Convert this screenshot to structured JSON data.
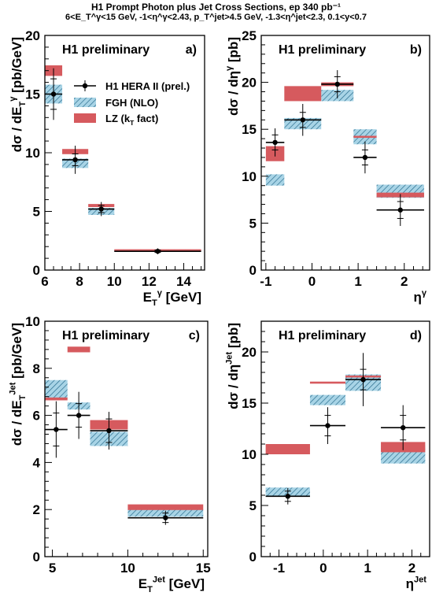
{
  "header": {
    "title": "H1 Prompt Photon plus Jet Cross Sections, ep 340 pb⁻¹",
    "subtitle": "6<E_T^γ<15 GeV, -1<η^γ<2.43, p_T^jet>4.5 GeV, -1.3<η^jet<2.3, 0.1<y<0.7"
  },
  "colors": {
    "data": "#000000",
    "nlo_fill": "#a8d4e6",
    "nlo_hatch": "#2a6d8e",
    "lz": "#d65a5e"
  },
  "legend": {
    "entries": [
      {
        "label": "H1 HERA II (prel.)",
        "style": "data-point"
      },
      {
        "label": "FGH (NLO)",
        "style": "hatched-box"
      },
      {
        "label": "LZ (k_T fact)",
        "style": "red-box"
      }
    ]
  },
  "chart_data": [
    {
      "panel": "a)",
      "type": "scatter",
      "preliminary_label": "H1 preliminary",
      "xlabel": "E_T^γ [GeV]",
      "ylabel": "dσ / dE_T^γ [pb/GeV]",
      "xlim": [
        6,
        15.2
      ],
      "ylim": [
        0,
        20
      ],
      "xticks": [
        6,
        8,
        10,
        12,
        14
      ],
      "yticks": [
        0,
        5,
        10,
        15,
        20
      ],
      "bins": [
        [
          6,
          7
        ],
        [
          7,
          8.5
        ],
        [
          8.5,
          10
        ],
        [
          10,
          15
        ]
      ],
      "data": {
        "y": [
          15.0,
          9.4,
          5.2,
          1.6
        ],
        "stat_err": [
          1.3,
          0.5,
          0.3,
          0.1
        ],
        "tot_err": [
          2.2,
          1.2,
          0.6,
          0.25
        ]
      },
      "nlo": {
        "y": [
          15.0,
          9.1,
          5.0,
          1.65
        ],
        "unc": [
          0.8,
          0.4,
          0.3,
          0.1
        ]
      },
      "lz": {
        "y": [
          17.0,
          10.1,
          5.5,
          1.72
        ],
        "unc": [
          0.45,
          0.22,
          0.13,
          0.05
        ]
      },
      "show_legend": true
    },
    {
      "panel": "b)",
      "type": "scatter",
      "preliminary_label": "H1 preliminary",
      "xlabel": "η^γ",
      "ylabel": "dσ / dη^γ [pb]",
      "xlim": [
        -1.1,
        2.55
      ],
      "ylim": [
        0,
        25
      ],
      "xticks": [
        -1,
        0,
        1,
        2
      ],
      "yticks": [
        0,
        5,
        10,
        15,
        20,
        25
      ],
      "bins": [
        [
          -1,
          -0.6
        ],
        [
          -0.6,
          0.2
        ],
        [
          0.2,
          0.9
        ],
        [
          0.9,
          1.4
        ],
        [
          1.4,
          2.43
        ]
      ],
      "data": {
        "y": [
          13.6,
          16.0,
          19.8,
          12.0,
          6.4
        ],
        "stat_err": [
          0.8,
          0.8,
          0.8,
          0.8,
          0.9
        ],
        "tot_err": [
          1.5,
          1.7,
          1.5,
          1.7,
          1.7
        ]
      },
      "nlo": {
        "y": [
          9.6,
          15.6,
          18.6,
          14.2,
          8.4
        ],
        "unc": [
          0.6,
          0.6,
          0.6,
          0.8,
          0.7
        ]
      },
      "lz": {
        "y": [
          12.4,
          18.8,
          19.8,
          14.2,
          8.0
        ],
        "unc": [
          0.8,
          0.8,
          0.2,
          0.1,
          0.25
        ]
      },
      "show_legend": false
    },
    {
      "panel": "c)",
      "type": "scatter",
      "preliminary_label": "H1 preliminary",
      "xlabel": "E_T^Jet [GeV]",
      "ylabel": "dσ / dE_T^Jet [pb/GeV]",
      "xlim": [
        4.5,
        15.3
      ],
      "ylim": [
        0,
        10
      ],
      "xticks": [
        5,
        10,
        15
      ],
      "yticks": [
        0,
        2,
        4,
        6,
        8,
        10
      ],
      "bins": [
        [
          4.5,
          6
        ],
        [
          6,
          7.5
        ],
        [
          7.5,
          10
        ],
        [
          10,
          15
        ]
      ],
      "data": {
        "y": [
          5.4,
          6.0,
          5.35,
          1.65
        ],
        "stat_err": [
          0.7,
          0.5,
          0.5,
          0.2
        ],
        "tot_err": [
          1.2,
          1.0,
          0.8,
          0.3
        ]
      },
      "nlo": {
        "y": [
          7.1,
          6.4,
          5.0,
          1.85
        ],
        "unc": [
          0.4,
          0.15,
          0.3,
          0.15
        ]
      },
      "lz": {
        "y": [
          6.7,
          8.8,
          5.6,
          2.1
        ],
        "unc": [
          0.06,
          0.12,
          0.2,
          0.12
        ]
      },
      "show_legend": false
    },
    {
      "panel": "d)",
      "type": "scatter",
      "preliminary_label": "H1 preliminary",
      "xlabel": "η^Jet",
      "ylabel": "dσ / dη^Jet [pb]",
      "xlim": [
        -1.4,
        2.4
      ],
      "ylim": [
        0,
        23
      ],
      "xticks": [
        -1,
        0,
        1,
        2
      ],
      "yticks": [
        0,
        5,
        10,
        15,
        20
      ],
      "bins": [
        [
          -1.3,
          -0.3
        ],
        [
          -0.3,
          0.5
        ],
        [
          0.5,
          1.3
        ],
        [
          1.3,
          2.3
        ]
      ],
      "data": {
        "y": [
          5.9,
          12.8,
          17.3,
          12.6
        ],
        "stat_err": [
          0.5,
          1.0,
          1.0,
          1.2
        ],
        "tot_err": [
          0.8,
          1.8,
          2.6,
          2.2
        ]
      },
      "nlo": {
        "y": [
          6.3,
          15.3,
          17.0,
          10.0
        ],
        "unc": [
          0.45,
          0.5,
          0.8,
          0.9
        ]
      },
      "lz": {
        "y": [
          10.5,
          17.0,
          17.6,
          10.7
        ],
        "unc": [
          0.5,
          0.1,
          0.1,
          0.5
        ]
      },
      "show_legend": false
    }
  ]
}
